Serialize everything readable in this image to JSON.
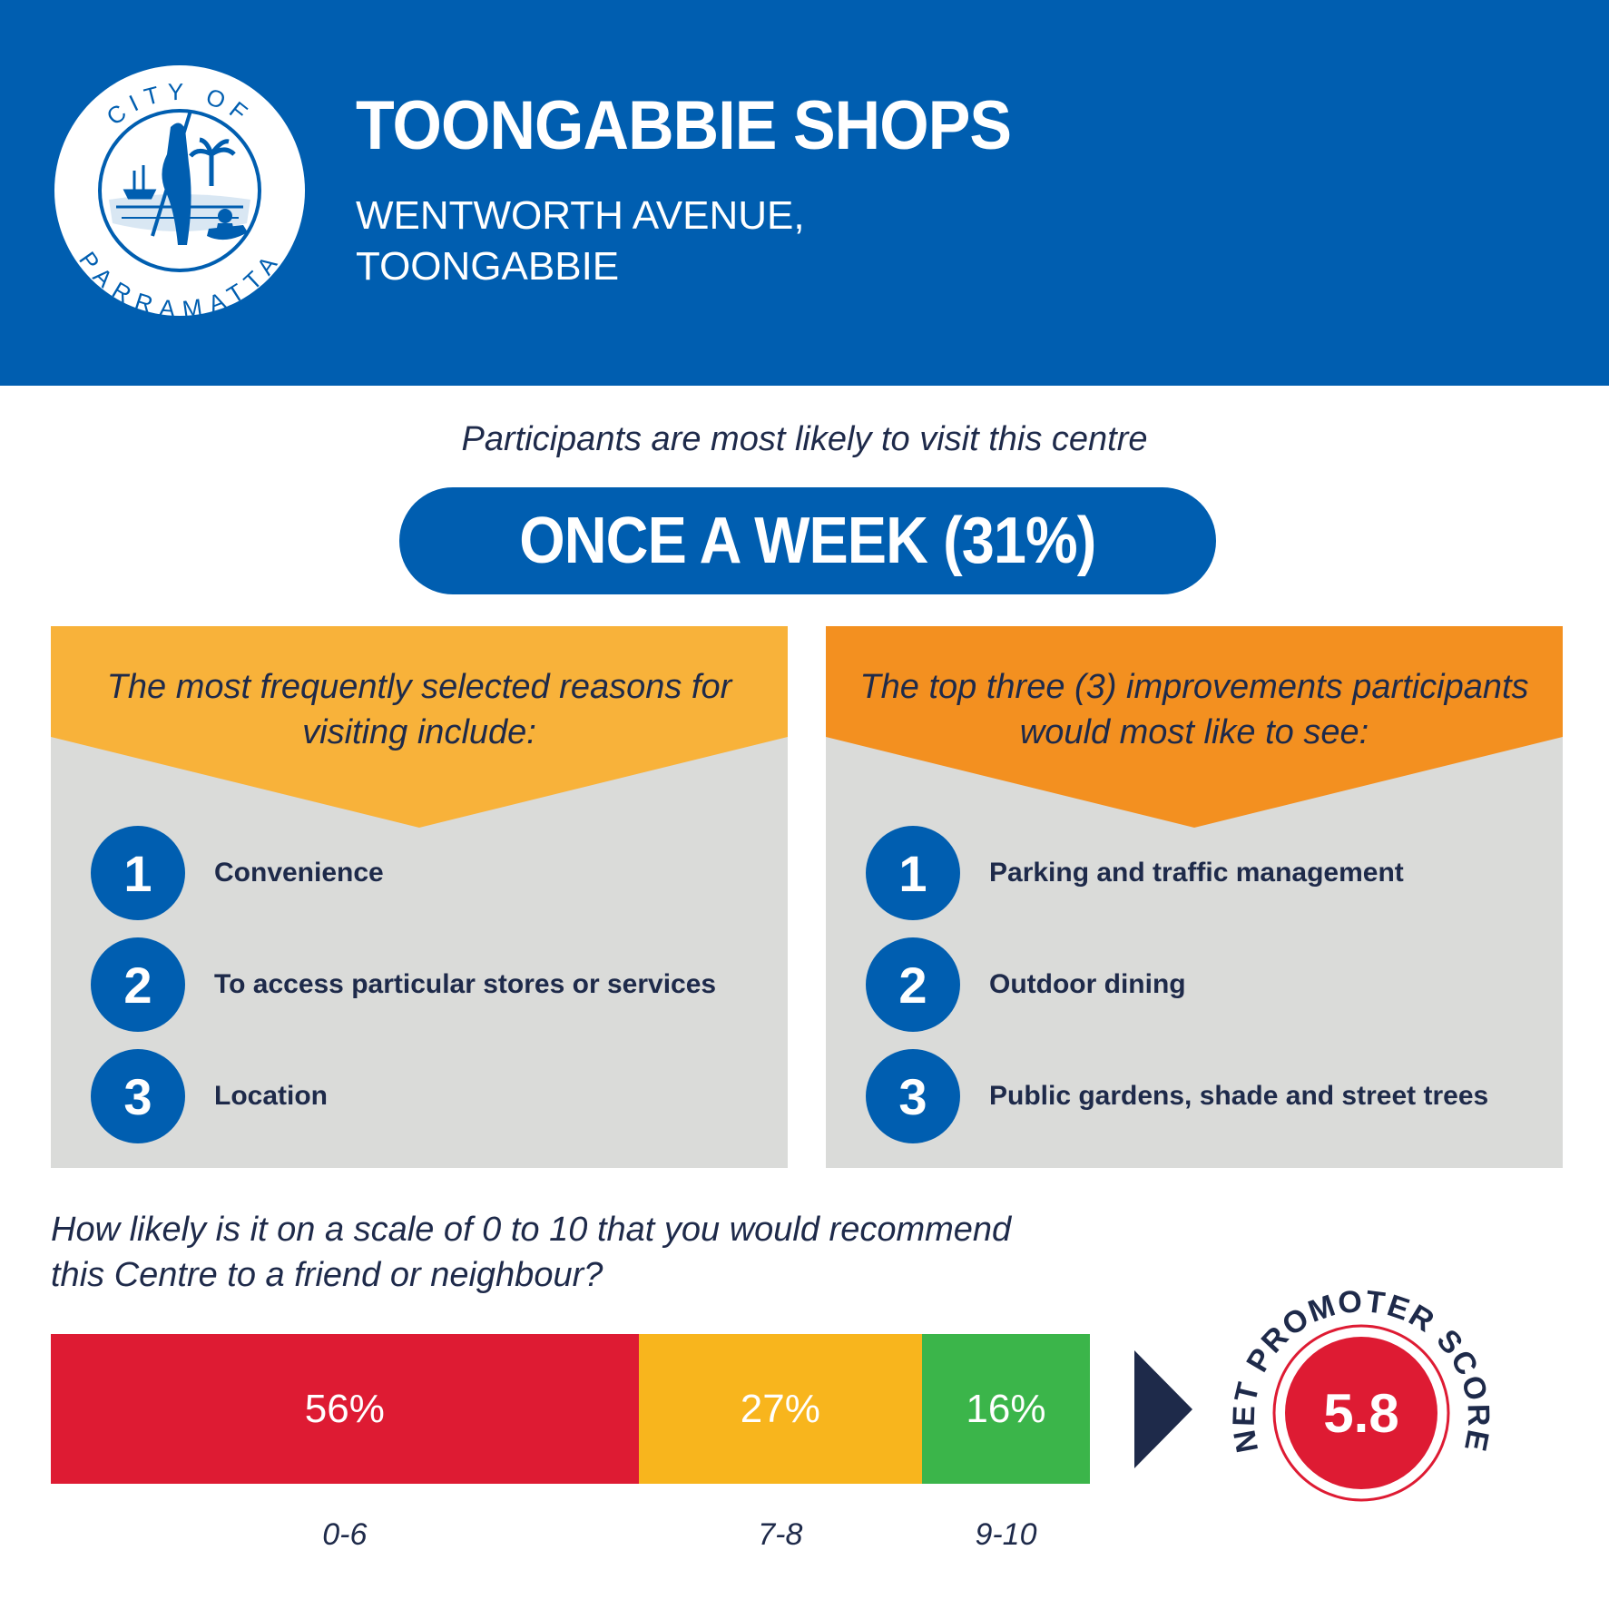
{
  "header": {
    "title": "TOONGABBIE SHOPS",
    "address_line1": "WENTWORTH AVENUE,",
    "address_line2": "TOONGABBIE",
    "logo_text_top": "CITY OF",
    "logo_text_bottom": "PARRAMATTA"
  },
  "frequency": {
    "label": "Participants are most likely to visit this centre",
    "value": "ONCE A WEEK (31%)"
  },
  "reasons": {
    "heading": [
      "The most frequently selected reasons for",
      "visiting include:"
    ],
    "items": [
      {
        "number": "1",
        "label": "Convenience"
      },
      {
        "number": "2",
        "label": "To access particular stores or services"
      },
      {
        "number": "3",
        "label": "Location"
      }
    ]
  },
  "improvements": {
    "heading": [
      "The top three (3) improvements participants",
      "would most like to see:"
    ],
    "items": [
      {
        "number": "1",
        "label": "Parking and traffic management"
      },
      {
        "number": "2",
        "label": "Outdoor dining"
      },
      {
        "number": "3",
        "label": "Public gardens, shade and street trees"
      }
    ]
  },
  "recommend": {
    "question_line1": "How likely is it on a scale of 0 to 10 that you would recommend",
    "question_line2": "this Centre to a friend or neighbour?"
  },
  "chart_data": {
    "type": "bar",
    "orientation": "horizontal-stacked",
    "categories": [
      "0-6",
      "7-8",
      "9-10"
    ],
    "values": [
      56,
      27,
      16
    ],
    "value_labels": [
      "56%",
      "27%",
      "16%"
    ],
    "colors": [
      "#de1b33",
      "#f8b51d",
      "#3bb54a"
    ],
    "unit": "%"
  },
  "nps": {
    "label": "NET PROMOTER SCORE",
    "value": "5.8"
  },
  "colors": {
    "brand_blue": "#005eb0",
    "panel_gray": "#dadbd9",
    "reasons_accent": "#f8b23a",
    "improvements_accent": "#f39020",
    "text_navy": "#1e2a4a",
    "nps_red": "#de1b33"
  }
}
